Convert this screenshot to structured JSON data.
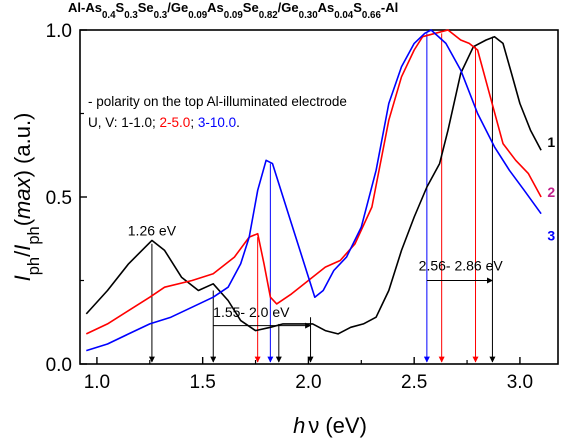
{
  "chart_data": {
    "type": "line",
    "title_parts": [
      {
        "t": "Al-As",
        "s": "n"
      },
      {
        "t": "0.4",
        "s": "b"
      },
      {
        "t": "S",
        "s": "n"
      },
      {
        "t": "0.3",
        "s": "b"
      },
      {
        "t": "Se",
        "s": "n"
      },
      {
        "t": "0.3",
        "s": "b"
      },
      {
        "t": "/Ge",
        "s": "n"
      },
      {
        "t": "0.09",
        "s": "b"
      },
      {
        "t": "As",
        "s": "n"
      },
      {
        "t": "0.09",
        "s": "b"
      },
      {
        "t": "Se",
        "s": "n"
      },
      {
        "t": "0.82",
        "s": "b"
      },
      {
        "t": "/Ge",
        "s": "n"
      },
      {
        "t": "0.30",
        "s": "b"
      },
      {
        "t": "As",
        "s": "n"
      },
      {
        "t": "0.04",
        "s": "b"
      },
      {
        "t": "S",
        "s": "n"
      },
      {
        "t": "0.66",
        "s": "b"
      },
      {
        "t": "-Al",
        "s": "n"
      }
    ],
    "xlabel_italic": "h",
    "xlabel_nu": "ν",
    "xlabel_unit": "(eV)",
    "ylabel_parts": [
      {
        "t": "I",
        "s": "i"
      },
      {
        "t": "ph",
        "s": "b"
      },
      {
        "t": "/",
        "s": "n"
      },
      {
        "t": "I",
        "s": "i"
      },
      {
        "t": "ph",
        "s": "b"
      },
      {
        "t": "(",
        "s": "n"
      },
      {
        "t": "max",
        "s": "i"
      },
      {
        "t": ")",
        "s": "n"
      },
      {
        "t": " (a.u.)",
        "s": "n"
      }
    ],
    "xlim": [
      0.92,
      3.18
    ],
    "ylim": [
      0.0,
      1.0
    ],
    "xticks": [
      "1.0",
      "1.5",
      "2.0",
      "2.5",
      "3.0"
    ],
    "xtick_values": [
      1.0,
      1.5,
      2.0,
      2.5,
      3.0
    ],
    "yticks": [
      "0.0",
      "0.5",
      "1.0"
    ],
    "ytick_values": [
      0.0,
      0.5,
      1.0
    ],
    "grid": false,
    "legend": {
      "line1": "- polarity on the top Al-illuminated electrode",
      "line2_prefix": "U, V: 1-1.0; ",
      "line2_red": "2-5.0",
      "line2_sep": "; ",
      "line2_blue": "3-10.0",
      "line2_end": "."
    },
    "series": [
      {
        "name": "1",
        "color": "#000000",
        "points": [
          [
            0.95,
            0.15
          ],
          [
            1.05,
            0.22
          ],
          [
            1.15,
            0.3
          ],
          [
            1.26,
            0.37
          ],
          [
            1.32,
            0.34
          ],
          [
            1.4,
            0.26
          ],
          [
            1.48,
            0.22
          ],
          [
            1.55,
            0.24
          ],
          [
            1.62,
            0.19
          ],
          [
            1.68,
            0.13
          ],
          [
            1.75,
            0.1
          ],
          [
            1.82,
            0.11
          ],
          [
            1.88,
            0.12
          ],
          [
            1.95,
            0.12
          ],
          [
            2.02,
            0.12
          ],
          [
            2.08,
            0.1
          ],
          [
            2.14,
            0.09
          ],
          [
            2.2,
            0.11
          ],
          [
            2.26,
            0.12
          ],
          [
            2.32,
            0.14
          ],
          [
            2.38,
            0.22
          ],
          [
            2.44,
            0.34
          ],
          [
            2.5,
            0.44
          ],
          [
            2.56,
            0.53
          ],
          [
            2.62,
            0.6
          ],
          [
            2.66,
            0.7
          ],
          [
            2.72,
            0.87
          ],
          [
            2.78,
            0.95
          ],
          [
            2.84,
            0.97
          ],
          [
            2.88,
            0.98
          ],
          [
            2.92,
            0.96
          ],
          [
            2.96,
            0.87
          ],
          [
            3.0,
            0.78
          ],
          [
            3.05,
            0.7
          ],
          [
            3.1,
            0.64
          ]
        ]
      },
      {
        "name": "2",
        "color": "#ff0000",
        "points": [
          [
            0.95,
            0.09
          ],
          [
            1.05,
            0.12
          ],
          [
            1.15,
            0.16
          ],
          [
            1.25,
            0.2
          ],
          [
            1.32,
            0.23
          ],
          [
            1.45,
            0.25
          ],
          [
            1.55,
            0.27
          ],
          [
            1.65,
            0.32
          ],
          [
            1.72,
            0.38
          ],
          [
            1.76,
            0.39
          ],
          [
            1.79,
            0.3
          ],
          [
            1.82,
            0.2
          ],
          [
            1.85,
            0.18
          ],
          [
            1.92,
            0.21
          ],
          [
            2.0,
            0.25
          ],
          [
            2.08,
            0.29
          ],
          [
            2.15,
            0.31
          ],
          [
            2.22,
            0.36
          ],
          [
            2.3,
            0.47
          ],
          [
            2.38,
            0.73
          ],
          [
            2.44,
            0.86
          ],
          [
            2.5,
            0.94
          ],
          [
            2.54,
            0.98
          ],
          [
            2.6,
            0.99
          ],
          [
            2.66,
            1.0
          ],
          [
            2.72,
            0.97
          ],
          [
            2.76,
            0.96
          ],
          [
            2.8,
            0.94
          ],
          [
            2.86,
            0.8
          ],
          [
            2.92,
            0.66
          ],
          [
            2.98,
            0.61
          ],
          [
            3.04,
            0.57
          ],
          [
            3.1,
            0.5
          ]
        ]
      },
      {
        "name": "3",
        "color": "#0000ff",
        "points": [
          [
            0.95,
            0.04
          ],
          [
            1.05,
            0.06
          ],
          [
            1.15,
            0.09
          ],
          [
            1.25,
            0.12
          ],
          [
            1.35,
            0.14
          ],
          [
            1.45,
            0.17
          ],
          [
            1.55,
            0.2
          ],
          [
            1.62,
            0.23
          ],
          [
            1.68,
            0.3
          ],
          [
            1.72,
            0.38
          ],
          [
            1.76,
            0.52
          ],
          [
            1.8,
            0.61
          ],
          [
            1.83,
            0.6
          ],
          [
            1.87,
            0.52
          ],
          [
            1.92,
            0.42
          ],
          [
            1.97,
            0.32
          ],
          [
            2.03,
            0.2
          ],
          [
            2.07,
            0.22
          ],
          [
            2.12,
            0.28
          ],
          [
            2.18,
            0.32
          ],
          [
            2.25,
            0.41
          ],
          [
            2.32,
            0.58
          ],
          [
            2.38,
            0.78
          ],
          [
            2.44,
            0.89
          ],
          [
            2.5,
            0.96
          ],
          [
            2.55,
            0.99
          ],
          [
            2.58,
            1.0
          ],
          [
            2.65,
            0.96
          ],
          [
            2.72,
            0.88
          ],
          [
            2.8,
            0.75
          ],
          [
            2.88,
            0.65
          ],
          [
            2.95,
            0.58
          ],
          [
            3.02,
            0.52
          ],
          [
            3.1,
            0.45
          ]
        ]
      }
    ],
    "series_labels": [
      {
        "text": "1",
        "x": 3.13,
        "y": 0.65,
        "color": "#000000"
      },
      {
        "text": "2",
        "x": 3.13,
        "y": 0.5,
        "color": "#c0208a"
      },
      {
        "text": "3",
        "x": 3.13,
        "y": 0.37,
        "color": "#0000ff"
      }
    ],
    "markers": [
      {
        "x": 1.26,
        "color": "#000000",
        "y_top": 0.36
      },
      {
        "x": 1.55,
        "color": "#000000",
        "y_top": 0.22
      },
      {
        "x": 1.76,
        "color": "#ff0000",
        "y_top": 0.38
      },
      {
        "x": 1.82,
        "color": "#0000ff",
        "y_top": 0.6
      },
      {
        "x": 1.86,
        "color": "#000000",
        "y_top": 0.12
      },
      {
        "x": 2.01,
        "color": "#000000",
        "y_top": 0.14
      },
      {
        "x": 2.56,
        "color": "#0000ff",
        "y_top": 0.99
      },
      {
        "x": 2.63,
        "color": "#ff0000",
        "y_top": 0.99
      },
      {
        "x": 2.79,
        "color": "#ff0000",
        "y_top": 0.95
      },
      {
        "x": 2.87,
        "color": "#000000",
        "y_top": 0.98
      }
    ],
    "annotations": [
      {
        "text": "1.26 eV",
        "x": 1.26,
        "y": 0.385
      },
      {
        "text": "1.55- 2.0 eV",
        "x": 1.73,
        "y": 0.14
      },
      {
        "text": "2.56- 2.86 eV",
        "x": 2.72,
        "y": 0.28
      }
    ],
    "ranges": [
      {
        "x1": 1.55,
        "x2": 2.01,
        "y": 0.115
      },
      {
        "x1": 2.56,
        "x2": 2.87,
        "y": 0.25
      }
    ]
  }
}
